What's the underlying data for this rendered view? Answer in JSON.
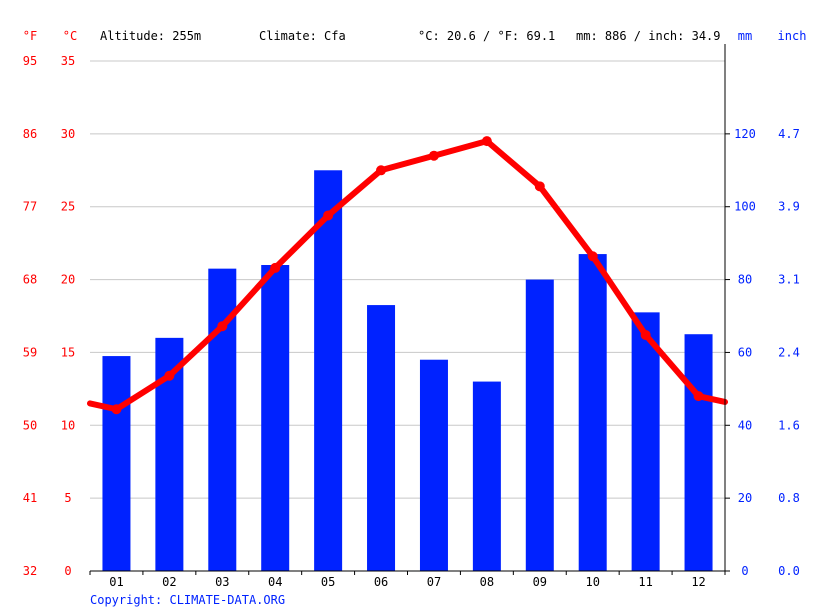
{
  "header": {
    "unit_f": "°F",
    "unit_c": "°C",
    "altitude": "Altitude: 255m",
    "climate": "Climate: Cfa",
    "temp_summary": "°C: 20.6 / °F: 69.1",
    "precip_summary": "mm: 886 / inch: 34.9",
    "unit_mm": "mm",
    "unit_inch": "inch"
  },
  "footer": {
    "copyright": "Copyright: CLIMATE-DATA.ORG"
  },
  "colors": {
    "temperature": "#ff0000",
    "precipitation": "#0022ff",
    "grid": "#c8c8c8",
    "axis": "#000000"
  },
  "chart_data": {
    "type": "bar",
    "categories": [
      "01",
      "02",
      "03",
      "04",
      "05",
      "06",
      "07",
      "08",
      "09",
      "10",
      "11",
      "12"
    ],
    "series": [
      {
        "kind": "bar",
        "axis": "mm",
        "values": [
          59,
          64,
          83,
          84,
          110,
          73,
          58,
          52,
          80,
          87,
          71,
          65
        ]
      },
      {
        "kind": "line",
        "axis": "C",
        "values": [
          11.1,
          13.4,
          16.8,
          20.8,
          24.4,
          27.5,
          28.5,
          29.5,
          26.4,
          21.6,
          16.2,
          12.0
        ]
      }
    ],
    "line_edges": {
      "left": 11.5,
      "right": 11.6
    },
    "axes": {
      "left_f": {
        "ticks": [
          "32",
          "41",
          "50",
          "59",
          "68",
          "77",
          "86",
          "95"
        ]
      },
      "left_c": {
        "ticks": [
          "0",
          "5",
          "10",
          "15",
          "20",
          "25",
          "30",
          "35"
        ],
        "range": [
          0,
          35
        ]
      },
      "right_mm": {
        "ticks": [
          "0",
          "20",
          "40",
          "60",
          "80",
          "100",
          "120"
        ],
        "range": [
          0,
          140
        ]
      },
      "right_inch": {
        "ticks": [
          "0.0",
          "0.8",
          "1.6",
          "2.4",
          "3.1",
          "3.9",
          "4.7"
        ]
      }
    },
    "grid": true
  }
}
